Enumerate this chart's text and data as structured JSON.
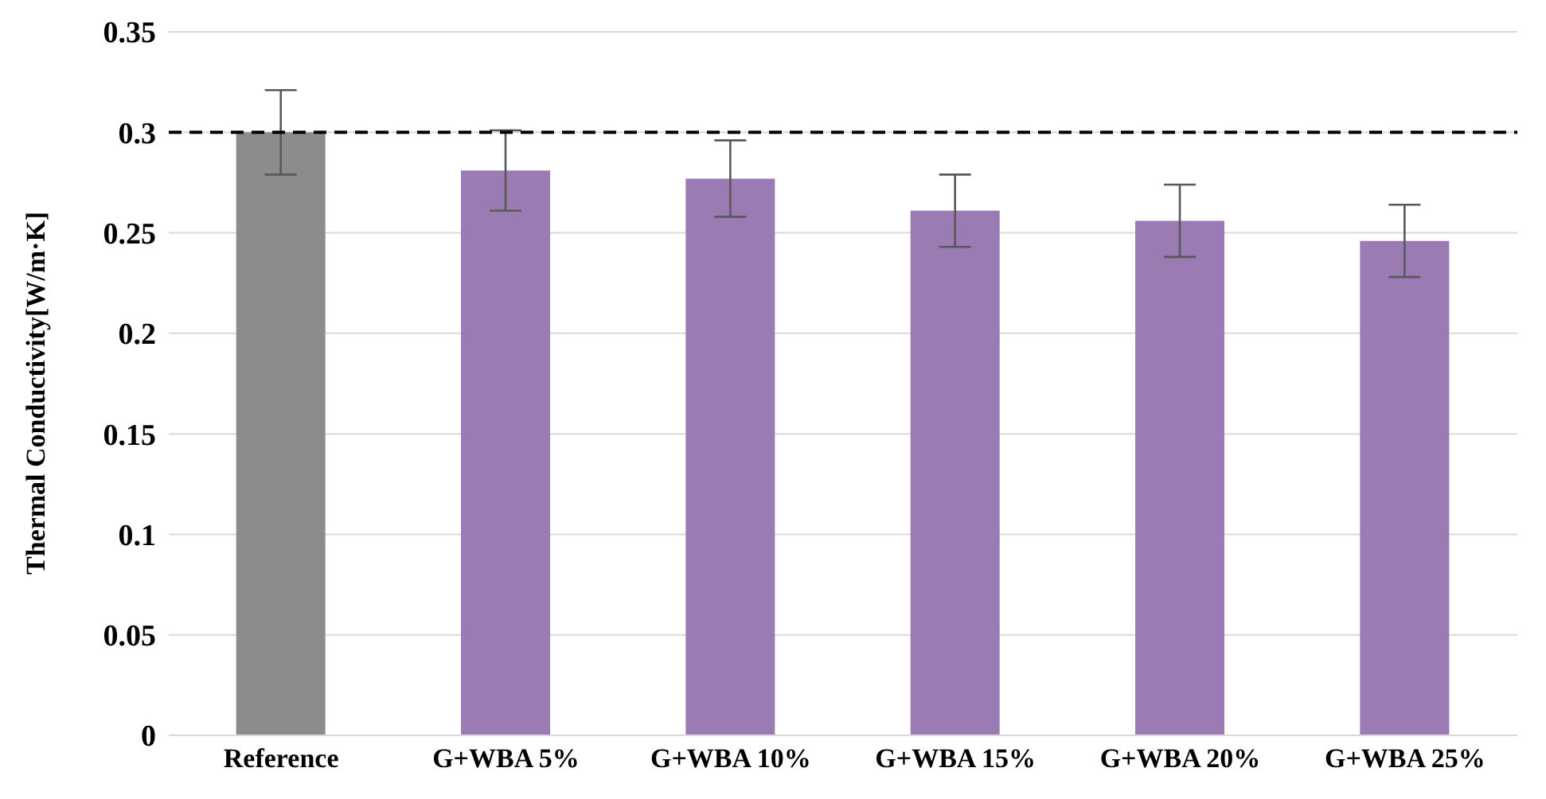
{
  "chart_data": {
    "type": "bar",
    "ylabel": "Thermal Conductivity[W/m·K]",
    "categories": [
      "Reference",
      "G+WBA 5%",
      "G+WBA 10%",
      "G+WBA 15%",
      "G+WBA 20%",
      "G+WBA 25%"
    ],
    "values": [
      0.3,
      0.281,
      0.277,
      0.261,
      0.256,
      0.246
    ],
    "colors": [
      "#8c8c8c",
      "#9a7bb4",
      "#9a7bb4",
      "#9a7bb4",
      "#9a7bb4",
      "#9a7bb4"
    ],
    "errors": [
      0.021,
      0.02,
      0.019,
      0.018,
      0.018,
      0.018
    ],
    "ylim": [
      0,
      0.35
    ],
    "yticks": [
      0,
      0.05,
      0.1,
      0.15,
      0.2,
      0.25,
      0.3,
      0.35
    ],
    "grid": "y",
    "ref_lines": [
      {
        "axis": "y",
        "value": 0.3,
        "color": "#000000",
        "line_style": "dashed"
      }
    ]
  }
}
